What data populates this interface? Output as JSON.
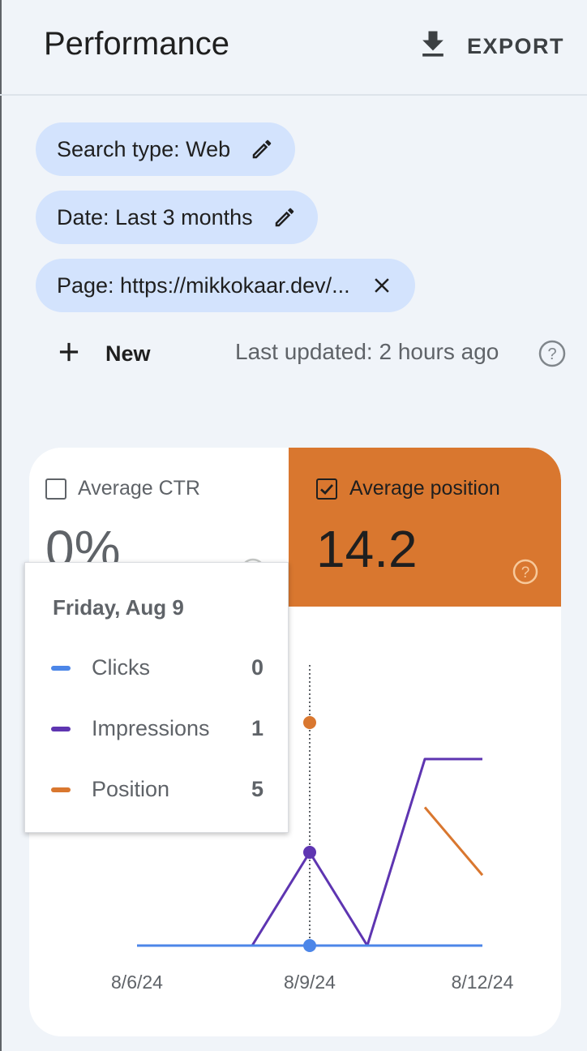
{
  "header": {
    "title": "Performance",
    "export_label": "EXPORT"
  },
  "filters": [
    {
      "label": "Search type: Web",
      "icon": "pencil-icon"
    },
    {
      "label": "Date: Last 3 months",
      "icon": "pencil-icon"
    },
    {
      "label": "Page: https://mikkokaar.dev/...",
      "icon": "close-icon"
    }
  ],
  "toolbar": {
    "new_label": "New",
    "last_updated": "Last updated: 2 hours ago"
  },
  "metrics": {
    "ctr": {
      "label": "Average CTR",
      "value": "0%",
      "checked": false
    },
    "position": {
      "label": "Average position",
      "value": "14.2",
      "checked": true,
      "color": "#d9772f"
    }
  },
  "tooltip": {
    "date": "Friday, Aug 9",
    "rows": [
      {
        "name": "Clicks",
        "value": "0",
        "color": "#4c86e8"
      },
      {
        "name": "Impressions",
        "value": "1",
        "color": "#5e35b1"
      },
      {
        "name": "Position",
        "value": "5",
        "color": "#d9772f"
      }
    ]
  },
  "chart_data": {
    "type": "line",
    "x": [
      "8/6/24",
      "8/7/24",
      "8/8/24",
      "8/9/24",
      "8/10/24",
      "8/11/24",
      "8/12/24"
    ],
    "x_tick_labels": [
      "8/6/24",
      "8/9/24",
      "8/12/24"
    ],
    "series": [
      {
        "name": "Clicks",
        "color": "#4c86e8",
        "values": [
          0,
          0,
          0,
          0,
          0,
          0,
          0
        ]
      },
      {
        "name": "Impressions",
        "color": "#5e35b1",
        "values": [
          0,
          0,
          0,
          1,
          0,
          2,
          2
        ]
      },
      {
        "name": "Position",
        "color": "#d9772f",
        "values": [
          null,
          null,
          null,
          5,
          null,
          10,
          14
        ]
      }
    ],
    "highlight_x": "8/9/24"
  }
}
